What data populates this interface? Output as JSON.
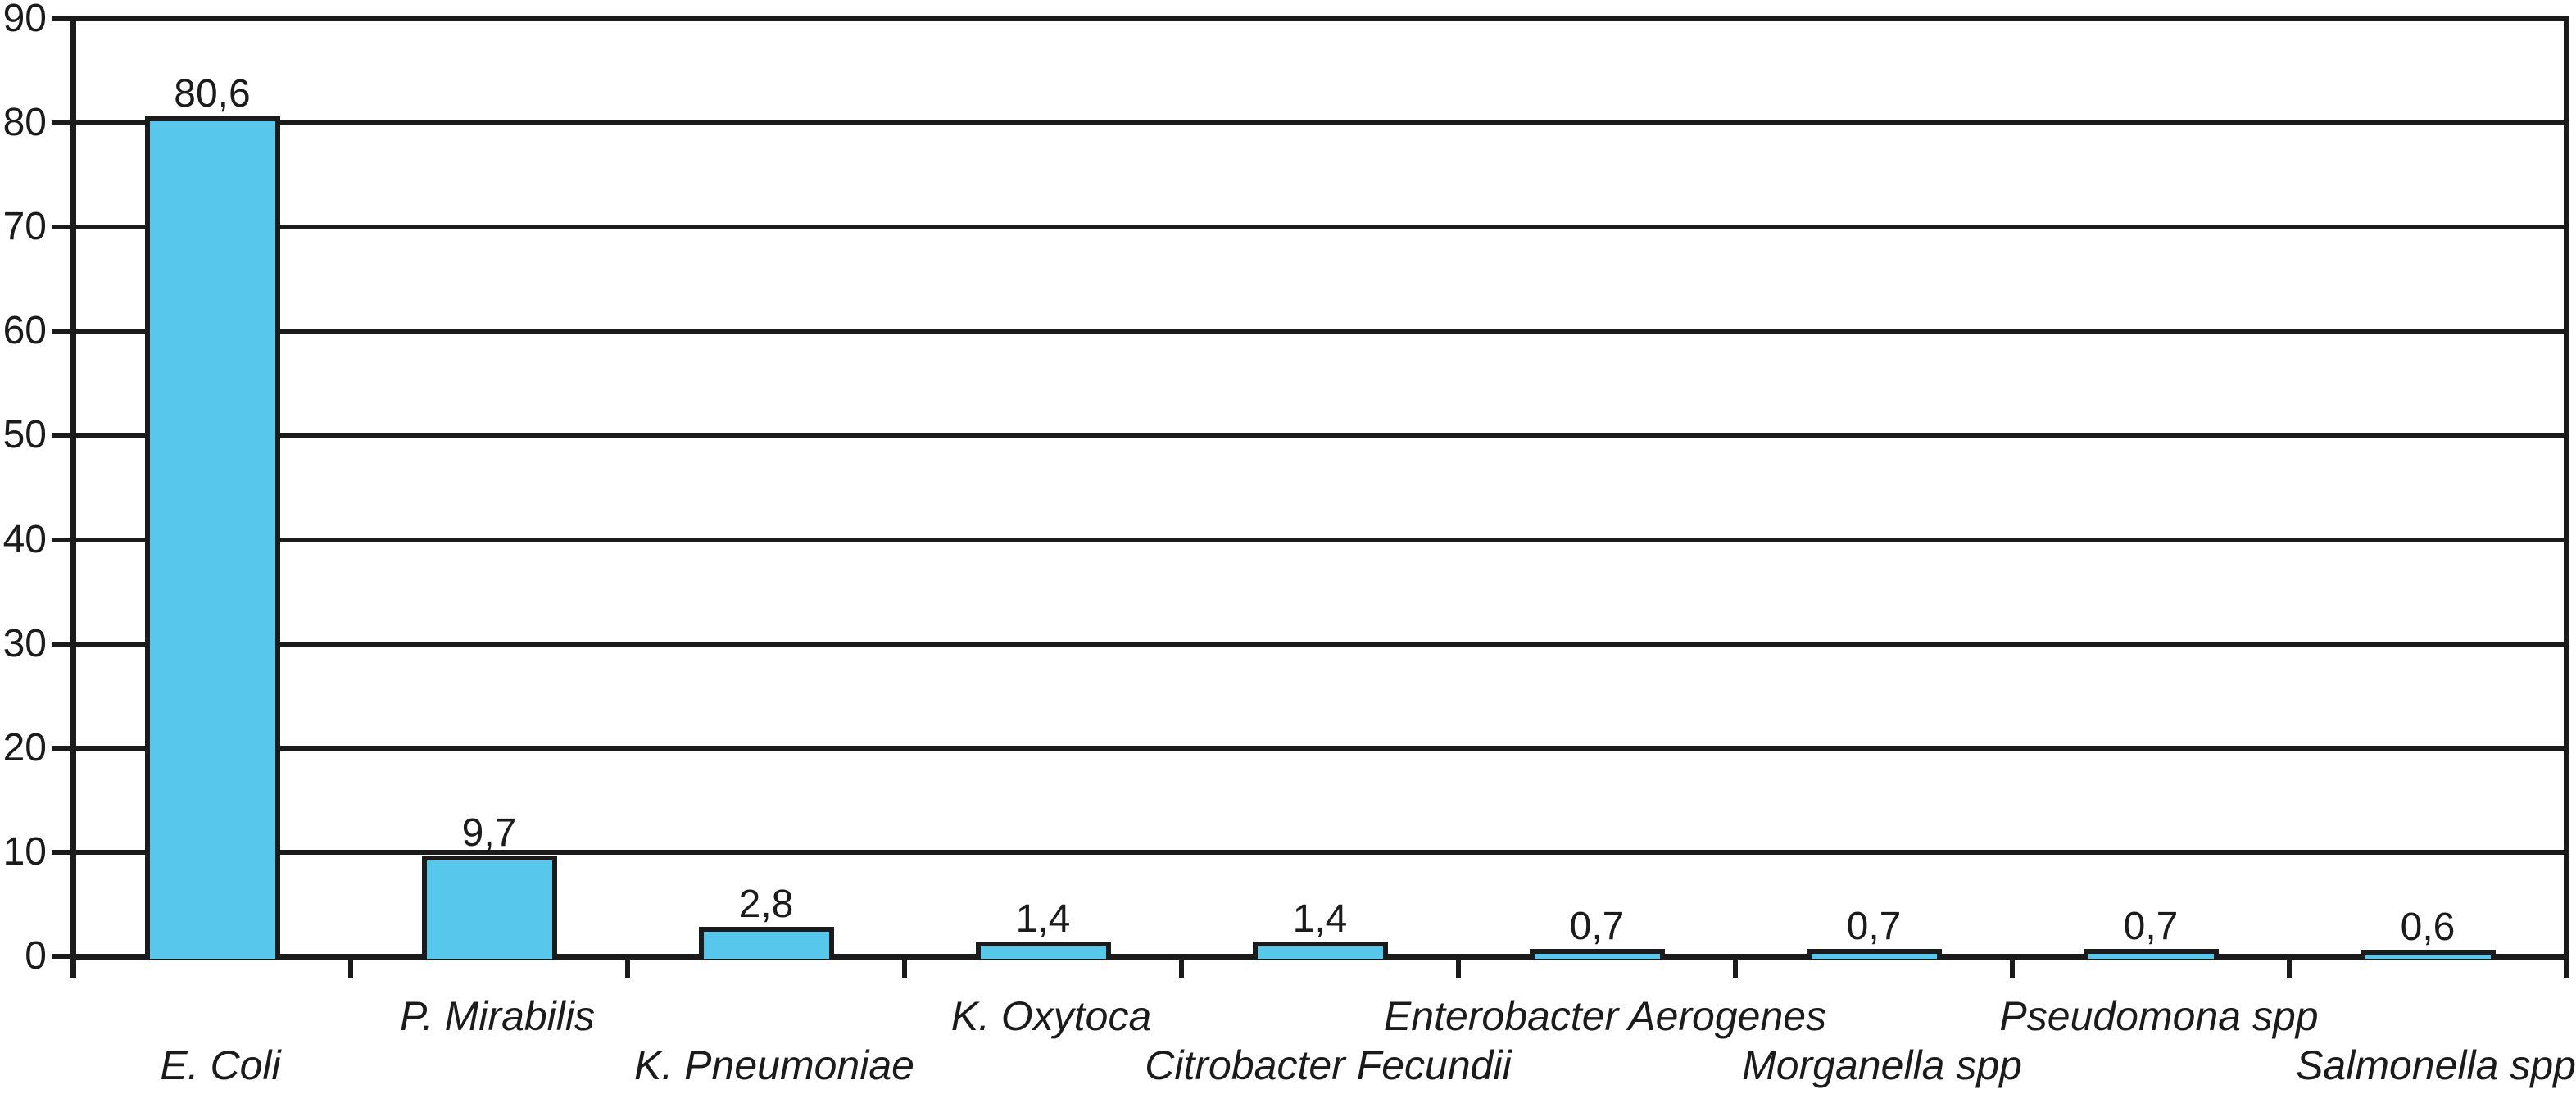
{
  "chart_data": {
    "type": "bar",
    "title": "",
    "xlabel": "",
    "ylabel": "",
    "categories": [
      "E. Coli",
      "P. Mirabilis",
      "K. Pneumoniae",
      "K. Oxytoca",
      "Citrobacter Fecundii",
      "Enterobacter Aerogenes",
      "Morganella spp",
      "Pseudomona spp",
      "Salmonella spp"
    ],
    "values": [
      80.6,
      9.7,
      2.8,
      1.4,
      1.4,
      0.7,
      0.7,
      0.7,
      0.6
    ],
    "value_labels": [
      "80,6",
      "9,7",
      "2,8",
      "1,4",
      "1,4",
      "0,7",
      "0,7",
      "0,7",
      "0,6"
    ],
    "decimal_separator": ",",
    "y_tick_labels": [
      "0",
      "10",
      "20",
      "30",
      "40",
      "50",
      "60",
      "70",
      "80",
      "90"
    ],
    "y_ticks": [
      0,
      10,
      20,
      30,
      40,
      50,
      60,
      70,
      80,
      90
    ],
    "ylim": [
      0,
      90
    ],
    "grid": true,
    "legend": "none",
    "x_label_layout": "staggered-two-rows",
    "x_label_style": "italic",
    "colors": {
      "bar_fill": "#57C8EC",
      "line": "#1B1B1B",
      "text": "#1B1B1B",
      "background": "#FFFFFF"
    }
  }
}
